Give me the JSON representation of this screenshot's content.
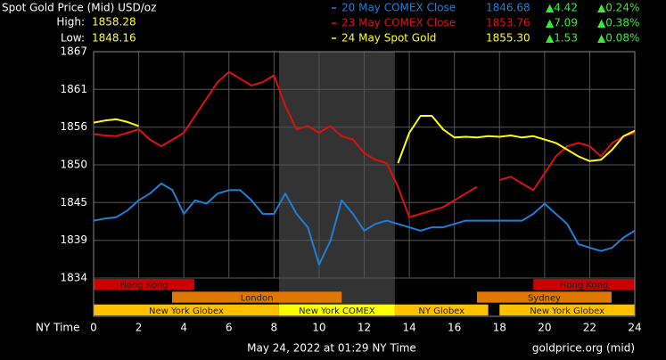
{
  "chart_data": {
    "type": "line",
    "title": "Spot Gold Price (Mid) USD/oz",
    "high_label": "High:",
    "high": "1858.28",
    "low_label": "Low:",
    "low": "1848.16",
    "x_label": "NY Time",
    "footer": "May 24, 2022 at 01:29 NY Time",
    "source": "goldprice.org (mid)",
    "xlim": [
      0,
      24
    ],
    "xticks": [
      0,
      2,
      4,
      6,
      8,
      10,
      12,
      14,
      16,
      18,
      20,
      22,
      24
    ],
    "ylim": [
      1833.5,
      1867
    ],
    "yticks": [
      {
        "value": 1833.5,
        "label": "1834"
      },
      {
        "value": 1839.08,
        "label": "1839"
      },
      {
        "value": 1844.67,
        "label": "1845"
      },
      {
        "value": 1850.25,
        "label": "1850"
      },
      {
        "value": 1855.83,
        "label": "1856"
      },
      {
        "value": 1861.42,
        "label": "1861"
      },
      1867
    ],
    "grid": true,
    "shade": [
      8.22,
      13.36
    ],
    "shade_color": "#333333",
    "sessions": [
      {
        "label": "Hong Kong",
        "start": 0,
        "end": 4.47,
        "row": 0,
        "color": "#cc0000"
      },
      {
        "label": "Hong Kong",
        "start": 19.5,
        "end": 24,
        "row": 0,
        "color": "#cc0000"
      },
      {
        "label": "London",
        "start": 3.48,
        "end": 11.0,
        "row": 1,
        "color": "#e07800"
      },
      {
        "label": "Sydney",
        "start": 17.0,
        "end": 22.97,
        "row": 1,
        "color": "#e07800"
      },
      {
        "label": "New York Globex",
        "start": 0,
        "end": 8.22,
        "row": 2,
        "color": "#ffc000"
      },
      {
        "label": "New York COMEX",
        "start": 8.22,
        "end": 13.36,
        "row": 2,
        "color": "#ffff00"
      },
      {
        "label": "NY Globex",
        "start": 13.36,
        "end": 17.5,
        "row": 2,
        "color": "#ffc000"
      },
      {
        "label": "New York Globex",
        "start": 18.0,
        "end": 24,
        "row": 2,
        "color": "#ffc000"
      }
    ],
    "x": [
      0,
      0.5,
      1,
      1.5,
      2,
      2.5,
      3,
      3.5,
      4,
      4.5,
      5,
      5.5,
      6,
      6.5,
      7,
      7.5,
      8,
      8.5,
      9,
      9.5,
      10,
      10.5,
      11,
      11.5,
      12,
      12.5,
      13,
      13.5,
      14,
      14.5,
      15,
      15.5,
      16,
      16.5,
      17,
      17.5,
      18,
      18.5,
      19,
      19.5,
      20,
      20.5,
      21,
      21.5,
      22,
      22.5,
      23,
      23.5,
      24
    ],
    "series": [
      {
        "name": "20 May COMEX Close",
        "color": "#1e7fd6",
        "stats": [
          "1846.68",
          "▲4.42",
          "▲0.24%"
        ],
        "values": [
          1842,
          1842.3,
          1842.5,
          1843.5,
          1845,
          1846,
          1847.5,
          1846.5,
          1843,
          1845,
          1844.5,
          1846,
          1846.5,
          1846.5,
          1845,
          1843,
          1843,
          1846,
          1843,
          1841,
          1835.5,
          1839,
          1845,
          1843,
          1840.5,
          1841.5,
          1842,
          1841.5,
          1841,
          1840.5,
          1841,
          1841,
          1841.5,
          1842,
          1842,
          1842,
          1842,
          1842,
          1842,
          1843,
          1844.5,
          1843,
          1841.5,
          1838.5,
          1838,
          1837.5,
          1838,
          1839.5,
          1840.5
        ]
      },
      {
        "name": "23 May COMEX Close",
        "color": "#dd1111",
        "stats": [
          "1853.76",
          "▲7.09",
          "▲0.38%"
        ],
        "values": [
          1854.8,
          1854.6,
          1854.5,
          1855,
          1855.5,
          1854,
          1853,
          1854,
          1855,
          1857.5,
          1860,
          1862.5,
          1864,
          1863,
          1862,
          1862.5,
          1863.5,
          1859,
          1855.5,
          1856,
          1855,
          1856,
          1854.5,
          1854,
          1852,
          1851,
          1850.5,
          1847,
          1842.5,
          1843,
          1843.5,
          1844,
          1845,
          1846,
          1847,
          null,
          1848,
          1848.5,
          1847.5,
          1846.5,
          1849,
          1851.5,
          1853,
          1853.5,
          1853,
          1851.5,
          1853.5,
          1854.5,
          1855
        ]
      },
      {
        "name": "24 May Spot Gold",
        "color": "#ffff00",
        "stats": [
          "1855.30",
          "▲1.53",
          "▲0.08%"
        ],
        "values": [
          1856.5,
          1856.8,
          1857,
          1856.6,
          1856,
          null,
          null,
          null,
          null,
          null,
          null,
          null,
          null,
          null,
          null,
          null,
          null,
          null,
          null,
          null,
          null,
          null,
          null,
          null,
          null,
          null,
          null,
          1850.5,
          1855,
          1857.5,
          1857.5,
          1855.5,
          1854.3,
          1854.4,
          1854.3,
          1854.5,
          1854.4,
          1854.6,
          1854.3,
          1854.5,
          1854,
          1853.5,
          1852.5,
          1851.5,
          1850.8,
          1851,
          1852.5,
          1854.5,
          1855.3
        ]
      }
    ]
  }
}
